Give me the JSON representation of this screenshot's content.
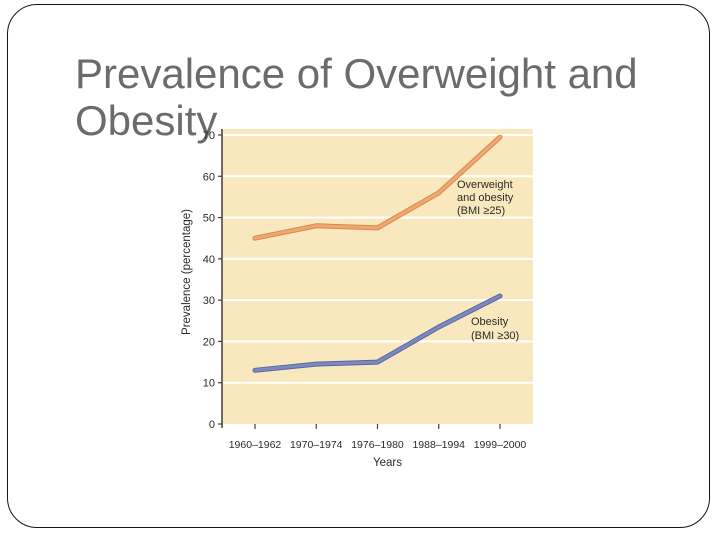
{
  "slide": {
    "title": "Prevalence of Overweight and Obesity",
    "title_color": "#6b6b6b",
    "border_color": "#161616",
    "background_color": "#ffffff"
  },
  "chart_data": {
    "type": "line",
    "title": "",
    "xlabel": "Years",
    "ylabel": "Prevalence (percentage)",
    "categories": [
      "1960–1962",
      "1970–1974",
      "1976–1980",
      "1988–1994",
      "1999–2000"
    ],
    "y_ticks": [
      0,
      10,
      20,
      30,
      40,
      50,
      60,
      70
    ],
    "ylim": [
      0,
      70
    ],
    "grid": true,
    "legend_position": "inline-annotations",
    "plot_bg_color": "#f9e8bd",
    "gridline_color": "#ffffff",
    "axis_color": "#3f3f3f",
    "tick_label_color": "#2b2b2b",
    "series": [
      {
        "name": "Overweight and obesity (BMI ≥25)",
        "label_lines": [
          "Overweight",
          "and obesity",
          "(BMI ≥25)"
        ],
        "values": [
          45,
          48,
          47.5,
          56,
          69.5
        ],
        "color": "#efa871",
        "edge_color": "#d8894c"
      },
      {
        "name": "Obesity (BMI ≥30)",
        "label_lines": [
          "Obesity",
          "(BMI ≥30)"
        ],
        "values": [
          13,
          14.5,
          15,
          23.5,
          31
        ],
        "color": "#7a8ac0",
        "edge_color": "#5a689f"
      }
    ]
  }
}
